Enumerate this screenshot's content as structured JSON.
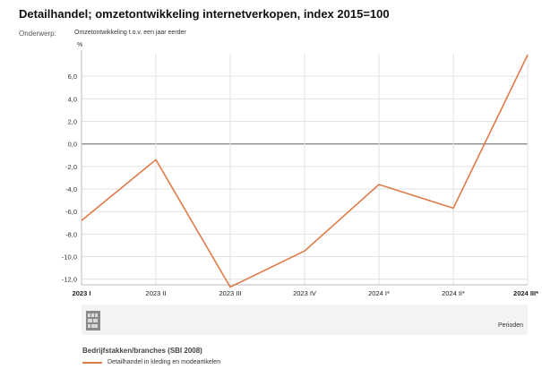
{
  "header": {
    "title": "Detailhandel; omzetontwikkeling internetverkopen, index 2015=100",
    "subject_label": "Onderwerp:",
    "subject_value": "Omzetontwikkeling t.o.v. een jaar eerder"
  },
  "chart_data": {
    "type": "line",
    "title": "Detailhandel; omzetontwikkeling internetverkopen, index 2015=100",
    "ylabel": "%",
    "xlabel": "Perioden",
    "categories": [
      "2023 I",
      "2023 II",
      "2023 III",
      "2023 IV",
      "2024 I*",
      "2024 II*",
      "2024 III*"
    ],
    "series": [
      {
        "name": "Detailhandel in kleding en modeartikelen",
        "color": "#e07b47",
        "values": [
          -6.8,
          -1.4,
          -12.7,
          -9.5,
          -3.6,
          -5.7,
          7.9
        ]
      }
    ],
    "ylim": [
      -12.5,
      8.0
    ],
    "yticks": [
      6.0,
      4.0,
      2.0,
      0.0,
      -2.0,
      -4.0,
      -6.0,
      -8.0,
      -10.0,
      -12.0
    ],
    "ytick_labels": [
      "6,0",
      "4,0",
      "2,0",
      "0,0",
      "-2,0",
      "-4,0",
      "-6,0",
      "-8,0",
      "-10,0",
      "-12,0"
    ],
    "grid": true,
    "legend_title": "Bedrijfstakken/branches (SBI 2008)",
    "legend_position": "bottom-left"
  },
  "logo": {
    "icon": "cbs-logo-icon"
  }
}
